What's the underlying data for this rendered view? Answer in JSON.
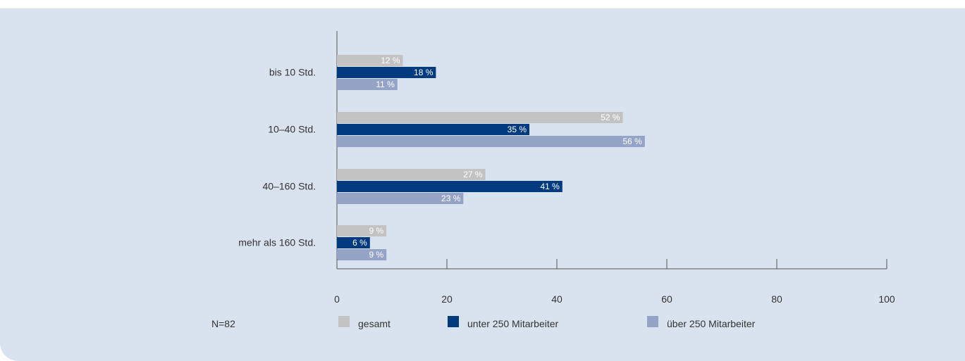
{
  "chart_data": {
    "type": "bar",
    "orientation": "horizontal",
    "categories": [
      "bis 10 Std.",
      "10–40 Std.",
      "40–160 Std.",
      "mehr als 160 Std."
    ],
    "series": [
      {
        "name": "gesamt",
        "values": [
          12,
          52,
          27,
          9
        ],
        "labels": [
          "12 %",
          "52 %",
          "27 %",
          "9 %"
        ],
        "color": "#c3c3c3"
      },
      {
        "name": "unter 250 Mitarbeiter",
        "values": [
          18,
          35,
          41,
          6
        ],
        "labels": [
          "18 %",
          "35 %",
          "41 %",
          "6 %"
        ],
        "color": "#003a7f"
      },
      {
        "name": "über 250 Mitarbeiter",
        "values": [
          11,
          56,
          23,
          9
        ],
        "labels": [
          "11 %",
          "56 %",
          "23 %",
          "9 %"
        ],
        "color": "#95a3c7"
      }
    ],
    "xlim": [
      0,
      100
    ],
    "xticks": [
      "0",
      "20",
      "40",
      "60",
      "80",
      "100"
    ],
    "grid": false,
    "legend_position": "bottom",
    "note": "N=82",
    "title": "",
    "xlabel": "",
    "ylabel": ""
  },
  "colors": {
    "background": "#d9e3ef",
    "axis": "#555555"
  }
}
